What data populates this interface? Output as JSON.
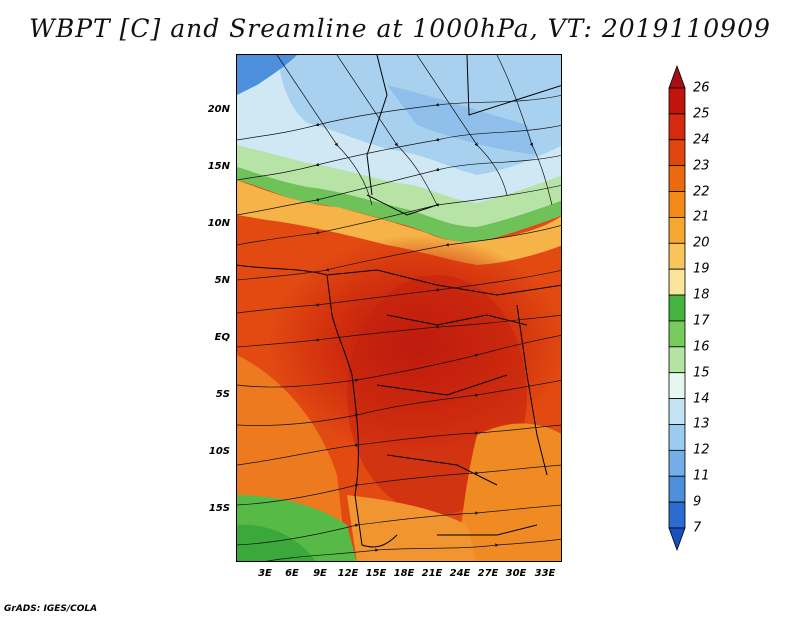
{
  "title": "WBPT [C] and Sreamline at 1000hPa, VT: 2019110909",
  "footer": "GrADS: IGES/COLA",
  "map": {
    "variable": "Wet-bulb potential temperature",
    "units": "C",
    "level": "1000hPa",
    "valid_time": "2019110909",
    "lon_range": [
      0,
      35
    ],
    "lat_range": [
      -20,
      24
    ],
    "x_ticks": [
      "3E",
      "6E",
      "9E",
      "12E",
      "15E",
      "18E",
      "21E",
      "24E",
      "27E",
      "30E",
      "33E"
    ],
    "y_ticks": [
      "20N",
      "15N",
      "10N",
      "5N",
      "EQ",
      "5S",
      "10S",
      "15S"
    ]
  },
  "colorbar": {
    "labels": [
      "26",
      "25",
      "24",
      "23",
      "22",
      "21",
      "20",
      "19",
      "18",
      "17",
      "16",
      "15",
      "14",
      "13",
      "12",
      "11",
      "9",
      "7"
    ],
    "colors": [
      "#a50f15",
      "#c0150f",
      "#d42a0e",
      "#e0460e",
      "#eb6a10",
      "#f28a1a",
      "#f6a832",
      "#f8c55c",
      "#fbe59a",
      "#46b440",
      "#78cc5c",
      "#b4e4a2",
      "#e8f6f0",
      "#c3e2f6",
      "#9ccbf0",
      "#74aee6",
      "#4d8fdc",
      "#2a6cd0",
      "#1a4fc0"
    ]
  }
}
